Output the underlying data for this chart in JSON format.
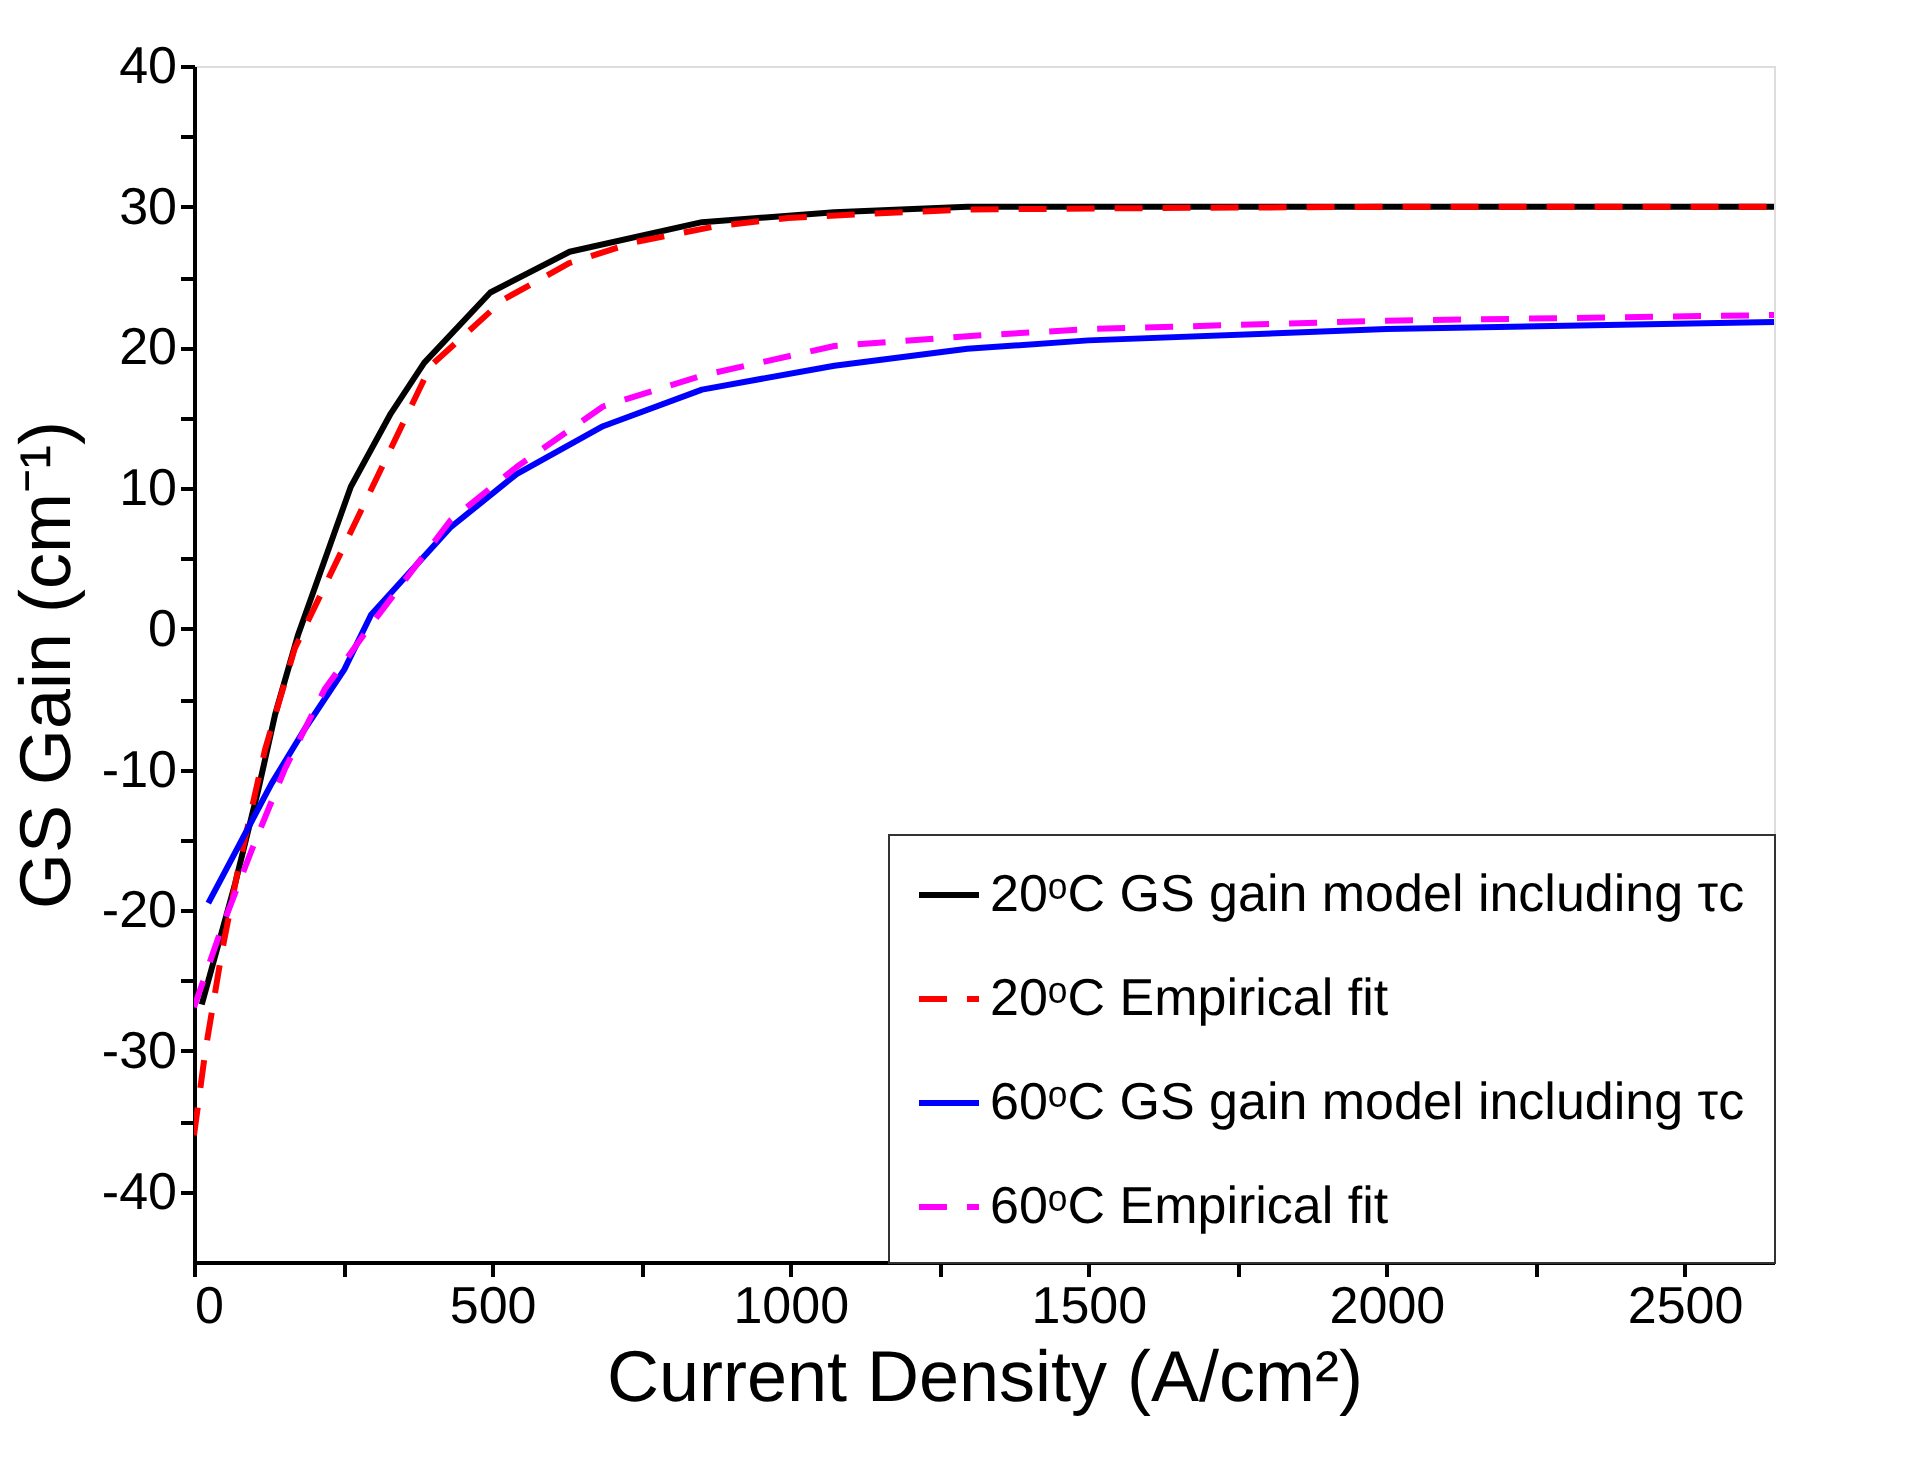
{
  "chart_data": {
    "type": "line",
    "xlabel": "Current Density (A/cm²)",
    "ylabel": "GS Gain (cm⁻¹)",
    "xlim": [
      0,
      2650
    ],
    "ylim": [
      -45,
      40
    ],
    "xticks": [
      0,
      {
        "value": 250,
        "label": null
      },
      500,
      {
        "value": 750,
        "label": null
      },
      1000,
      {
        "value": 1250,
        "label": null
      },
      1500,
      {
        "value": 1750,
        "label": null
      },
      2000,
      {
        "value": 2250,
        "label": null
      },
      2500
    ],
    "yticks": [
      -40,
      {
        "value": -35,
        "label": null
      },
      -30,
      {
        "value": -25,
        "label": null
      },
      -20,
      {
        "value": -15,
        "label": null
      },
      -10,
      {
        "value": -5,
        "label": null
      },
      0,
      {
        "value": 5,
        "label": null
      },
      10,
      {
        "value": 15,
        "label": null
      },
      20,
      {
        "value": 25,
        "label": null
      },
      30,
      {
        "value": 35,
        "label": null
      },
      40
    ],
    "grid": false,
    "legend": "bottom right",
    "marker": "none",
    "series": [
      {
        "name": "20ᵒC GS gain model including τc",
        "color": "#000000",
        "line_style": "solid",
        "x": [
          13,
          69,
          108,
          136,
          174,
          263,
          330,
          386,
          497,
          630,
          852,
          1074,
          1297,
          1600,
          2000,
          2650
        ],
        "values": [
          -26.7,
          -18.1,
          -11.4,
          -6.1,
          -0.5,
          10.1,
          15.3,
          18.9,
          23.9,
          26.8,
          28.9,
          29.6,
          30,
          30,
          30,
          30
        ]
      },
      {
        "name": "20ᵒC Empirical fit",
        "color": "#ff0000",
        "line_style": "dashed",
        "x": [
          0,
          19,
          47,
          74,
          119,
          169,
          397,
          519,
          630,
          741,
          874,
          997,
          1130,
          1297,
          1600,
          2000,
          2650
        ],
        "values": [
          -36,
          -30,
          -22.9,
          -17.1,
          -8.6,
          -1.4,
          18.7,
          23.4,
          26,
          27.5,
          28.6,
          29.2,
          29.5,
          29.8,
          29.9,
          30,
          30
        ]
      },
      {
        "name": "60ᵒC GS gain model including τc",
        "color": "#0000ff",
        "line_style": "solid",
        "x": [
          24,
          74,
          130,
          186,
          252,
          297,
          430,
          541,
          686,
          852,
          1074,
          1297,
          1500,
          2000,
          2650
        ],
        "values": [
          -19.5,
          -15.5,
          -11,
          -7.1,
          -2.9,
          1,
          7.2,
          11,
          14.4,
          17,
          18.7,
          19.9,
          20.5,
          21.3,
          21.8
        ]
      },
      {
        "name": "60ᵒC Empirical fit",
        "color": "#ff00ff",
        "line_style": "dashed",
        "x": [
          0,
          47,
          97,
          152,
          219,
          297,
          430,
          541,
          686,
          852,
          1074,
          1297,
          1500,
          2000,
          2650
        ],
        "values": [
          -26.9,
          -21.2,
          -15.7,
          -10,
          -4.3,
          0.3,
          7.7,
          11.5,
          15.8,
          18,
          20.1,
          20.8,
          21.3,
          21.9,
          22.3
        ]
      }
    ]
  }
}
